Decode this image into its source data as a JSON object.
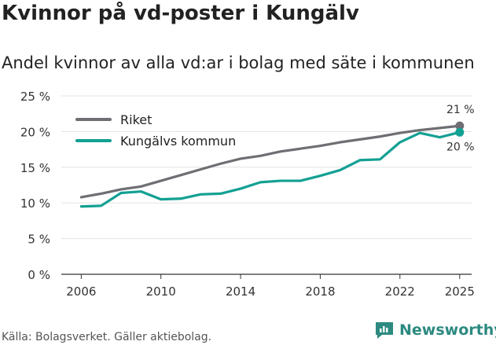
{
  "header": {
    "title": "Kvinnor på vd-poster i Kungälv",
    "subtitle": "Andel kvinnor av alla vd:ar i bolag med säte i kommunen"
  },
  "footer": {
    "source": "Källa: Bolagsverket. Gäller aktiebolag.",
    "brand": "Newsworthy"
  },
  "chart_data": {
    "type": "line",
    "title": "Kvinnor på vd-poster i Kungälv",
    "subtitle": "Andel kvinnor av alla vd:ar i bolag med säte i kommunen",
    "xlabel": "",
    "ylabel": "",
    "x": [
      2006,
      2007,
      2008,
      2009,
      2010,
      2011,
      2012,
      2013,
      2014,
      2015,
      2016,
      2017,
      2018,
      2019,
      2020,
      2021,
      2022,
      2023,
      2024,
      2025
    ],
    "x_ticks": [
      "2006",
      "2010",
      "2014",
      "2018",
      "2022",
      "2025"
    ],
    "y_ticks": [
      "0 %",
      "5 %",
      "10 %",
      "15 %",
      "20 %",
      "25 %"
    ],
    "ylim": [
      0,
      25
    ],
    "grid": true,
    "legend_position": "top-left",
    "series": [
      {
        "name": "Riket",
        "color": "#6e6e73",
        "values": [
          10.8,
          11.3,
          11.9,
          12.3,
          13.1,
          13.9,
          14.7,
          15.5,
          16.2,
          16.6,
          17.2,
          17.6,
          18.0,
          18.5,
          18.9,
          19.3,
          19.8,
          20.2,
          20.5,
          20.8
        ],
        "end_label": "21 %"
      },
      {
        "name": "Kungälvs kommun",
        "color": "#13a093",
        "values": [
          9.5,
          9.6,
          11.4,
          11.6,
          10.5,
          10.6,
          11.2,
          11.3,
          12.0,
          12.9,
          13.1,
          13.1,
          13.8,
          14.6,
          16.0,
          16.1,
          18.5,
          19.8,
          19.2,
          19.9
        ],
        "end_label": "20 %"
      }
    ]
  }
}
